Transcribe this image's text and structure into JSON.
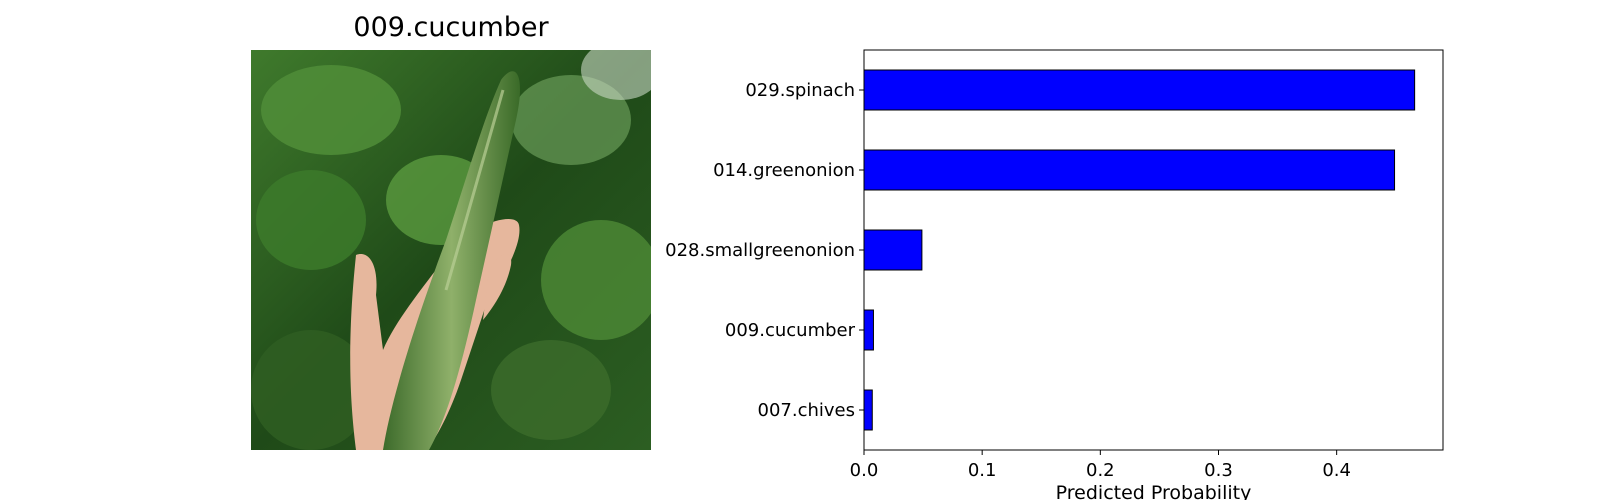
{
  "photo": {
    "title": "009.cucumber",
    "description_icon": "cucumber-photo"
  },
  "chart_data": {
    "type": "bar",
    "orientation": "horizontal",
    "categories": [
      "029.spinach",
      "014.greenonion",
      "028.smallgreenonion",
      "009.cucumber",
      "007.chives"
    ],
    "values": [
      0.466,
      0.449,
      0.049,
      0.008,
      0.007
    ],
    "xlabel": "Predicted Probability",
    "ylabel": "",
    "xlim": [
      0,
      0.49
    ],
    "xticks": [
      "0.0",
      "0.1",
      "0.2",
      "0.3",
      "0.4"
    ],
    "xtick_values": [
      0.0,
      0.1,
      0.2,
      0.3,
      0.4
    ],
    "bar_color": "#0000ff",
    "edge_color": "#000000",
    "grid": false
  }
}
